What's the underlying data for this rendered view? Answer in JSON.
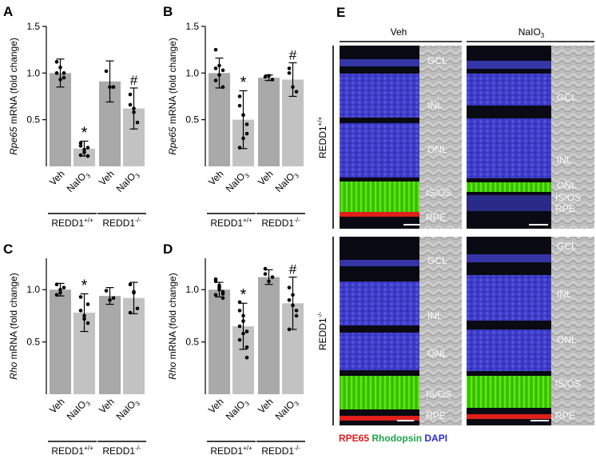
{
  "chart_data": [
    {
      "panel": "A",
      "type": "bar",
      "ylabel_gene": "Rpe65",
      "ylabel_rest": " mRNA (fold change)",
      "ylim": [
        0,
        1.5
      ],
      "yticks": [
        "0.5",
        "1.0",
        "1.5"
      ],
      "ytick_values": [
        0.5,
        1.0,
        1.5
      ],
      "categories": [
        "Veh",
        "NaIO3",
        "Veh",
        "NaIO3"
      ],
      "groups": [
        "REDD1+/+",
        "REDD1-/-"
      ],
      "values": [
        1.0,
        0.19,
        0.91,
        0.62
      ],
      "errors": [
        0.15,
        0.08,
        0.22,
        0.22
      ],
      "points": [
        [
          1.0,
          1.06,
          0.95,
          1.12,
          0.93,
          1.0
        ],
        [
          0.25,
          0.18,
          0.11,
          0.22,
          0.15,
          0.2,
          0.12
        ],
        [
          1.02,
          0.85,
          0.85
        ],
        [
          0.77,
          0.62,
          0.47,
          0.66,
          0.58
        ]
      ],
      "markers": [
        "",
        "*",
        "",
        "#"
      ]
    },
    {
      "panel": "B",
      "type": "bar",
      "ylabel_gene": "Rpe65",
      "ylabel_rest": " mRNA (fold change)",
      "ylim": [
        0,
        1.5
      ],
      "yticks": [
        "0.5",
        "1.0",
        "1.5"
      ],
      "ytick_values": [
        0.5,
        1.0,
        1.5
      ],
      "categories": [
        "Veh",
        "NaIO3",
        "Veh",
        "NaIO3"
      ],
      "groups": [
        "REDD1+/+",
        "REDD1-/-"
      ],
      "values": [
        1.0,
        0.5,
        0.95,
        0.93
      ],
      "errors": [
        0.16,
        0.31,
        0.03,
        0.18
      ],
      "points": [
        [
          1.25,
          1.08,
          1.03,
          0.92,
          0.98,
          0.85,
          1.05
        ],
        [
          0.75,
          0.55,
          0.35,
          0.65,
          0.3,
          0.45,
          0.2,
          0.55
        ],
        [
          0.96,
          0.97,
          0.93
        ],
        [
          1.05,
          0.85,
          0.8,
          1.0
        ]
      ],
      "markers": [
        "",
        "*",
        "",
        "#"
      ]
    },
    {
      "panel": "C",
      "type": "bar",
      "ylabel_gene": "Rho",
      "ylabel_rest": " mRNA (fold change)",
      "ylim": [
        0,
        1.3
      ],
      "yticks": [
        "0.5",
        "1.0"
      ],
      "ytick_values": [
        0.5,
        1.0
      ],
      "categories": [
        "Veh",
        "NaIO3",
        "Veh",
        "NaIO3"
      ],
      "groups": [
        "REDD1+/+",
        "REDD1-/-"
      ],
      "values": [
        1.0,
        0.78,
        0.94,
        0.92
      ],
      "errors": [
        0.06,
        0.18,
        0.08,
        0.15
      ],
      "points": [
        [
          1.05,
          0.97,
          1.02,
          0.95,
          1.0
        ],
        [
          0.93,
          0.72,
          0.68,
          0.8,
          0.75,
          0.86
        ],
        [
          0.99,
          0.9,
          0.92
        ],
        [
          1.05,
          0.97,
          0.82,
          0.78,
          0.98
        ]
      ],
      "markers": [
        "",
        "*",
        "",
        ""
      ]
    },
    {
      "panel": "D",
      "type": "bar",
      "ylabel_gene": "Rho",
      "ylabel_rest": " mRNA (fold change)",
      "ylim": [
        0,
        1.3
      ],
      "yticks": [
        "0.5",
        "1.0"
      ],
      "ytick_values": [
        0.5,
        1.0
      ],
      "categories": [
        "Veh",
        "NaIO3",
        "Veh",
        "NaIO3"
      ],
      "groups": [
        "REDD1+/+",
        "REDD1-/-"
      ],
      "values": [
        1.0,
        0.65,
        1.12,
        0.87
      ],
      "errors": [
        0.07,
        0.22,
        0.07,
        0.25
      ],
      "points": [
        [
          1.1,
          1.04,
          0.98,
          0.95,
          1.02,
          0.92,
          1.08,
          1.0,
          0.96
        ],
        [
          0.88,
          0.75,
          0.6,
          0.52,
          0.7,
          0.45,
          0.65,
          0.58,
          0.35,
          0.8
        ],
        [
          1.2,
          1.08,
          1.12,
          1.15
        ],
        [
          1.02,
          0.95,
          0.8,
          0.62,
          0.85,
          0.75,
          0.9
        ]
      ],
      "markers": [
        "",
        "*",
        "",
        "#"
      ]
    }
  ],
  "panel_e": {
    "label": "E",
    "columns": [
      "Veh",
      "NaIO3"
    ],
    "rows": [
      "REDD1+/+",
      "REDD1-/-"
    ],
    "layer_labels": [
      [
        "GCL",
        "INL",
        "ONL",
        "IS/OS",
        "RPE"
      ],
      [
        "GCL",
        "INL",
        "ONL",
        "IS/OS",
        "RPE"
      ],
      [
        "GCL",
        "INL",
        "ONL",
        "IS/OS",
        "RPE"
      ],
      [
        "GCL",
        "INL",
        "ONL",
        "IS/OS",
        "RPE"
      ]
    ],
    "legend": [
      {
        "text": "RPE65",
        "color": "#e31a1c"
      },
      {
        "text": "Rhodopsin",
        "color": "#1fa34a"
      },
      {
        "text": "DAPI",
        "color": "#2b2bd0"
      }
    ]
  },
  "colors": {
    "veh_bar": "#a9a9a9",
    "naio3_bar": "#c2c2c2",
    "dapi": "#3a3ad0",
    "rhodopsin": "#49dc00",
    "rpe65": "#e0201a",
    "background": "#0a0a14"
  }
}
